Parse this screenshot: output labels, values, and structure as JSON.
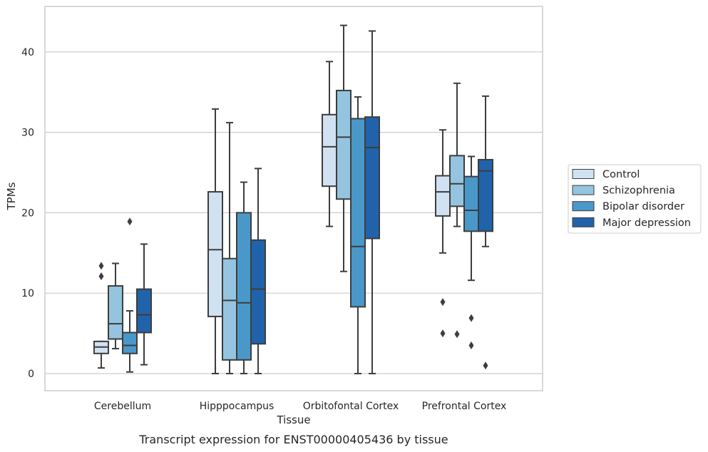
{
  "chart_data": {
    "type": "box",
    "title": "",
    "caption": "Transcript expression for ENST00000405436 by tissue",
    "xlabel": "Tissue",
    "ylabel": "TPMs",
    "ylim": [
      -2,
      45.5
    ],
    "yticks": [
      0,
      10,
      20,
      30,
      40
    ],
    "grid": "horizontal",
    "legend_position": "right",
    "categories": [
      "Cerebellum",
      "Hipppocampus",
      "Orbitofontal Cortex",
      "Prefrontal Cortex"
    ],
    "series": [
      {
        "name": "Control",
        "color": "#d0e1f2",
        "boxes": [
          {
            "min": 0.7,
            "q1": 2.5,
            "median": 3.3,
            "q3": 4.0,
            "max": 4.0,
            "outliers": [
              12.1,
              13.4
            ]
          },
          {
            "min": 0.0,
            "q1": 7.1,
            "median": 15.4,
            "q3": 22.6,
            "max": 32.9,
            "outliers": []
          },
          {
            "min": 18.3,
            "q1": 23.3,
            "median": 28.2,
            "q3": 32.2,
            "max": 38.8,
            "outliers": []
          },
          {
            "min": 15.0,
            "q1": 19.6,
            "median": 22.6,
            "q3": 24.6,
            "max": 30.3,
            "outliers": [
              5.0,
              8.9
            ]
          }
        ]
      },
      {
        "name": "Schizophrenia",
        "color": "#94c4df",
        "boxes": [
          {
            "min": 3.1,
            "q1": 4.3,
            "median": 6.2,
            "q3": 10.9,
            "max": 13.7,
            "outliers": []
          },
          {
            "min": 0.0,
            "q1": 1.7,
            "median": 9.1,
            "q3": 14.3,
            "max": 31.2,
            "outliers": []
          },
          {
            "min": 12.7,
            "q1": 21.7,
            "median": 29.4,
            "q3": 35.2,
            "max": 43.3,
            "outliers": []
          },
          {
            "min": 18.3,
            "q1": 20.8,
            "median": 23.6,
            "q3": 27.1,
            "max": 36.1,
            "outliers": [
              4.9
            ]
          }
        ]
      },
      {
        "name": "Bipolar disorder",
        "color": "#4a98c9",
        "boxes": [
          {
            "min": 0.2,
            "q1": 2.5,
            "median": 3.5,
            "q3": 5.1,
            "max": 7.8,
            "outliers": [
              18.9
            ]
          },
          {
            "min": 0.0,
            "q1": 1.7,
            "median": 8.8,
            "q3": 20.0,
            "max": 23.8,
            "outliers": []
          },
          {
            "min": 0.0,
            "q1": 8.3,
            "median": 15.8,
            "q3": 31.7,
            "max": 34.4,
            "outliers": []
          },
          {
            "min": 11.6,
            "q1": 17.7,
            "median": 20.3,
            "q3": 24.5,
            "max": 27.0,
            "outliers": [
              3.5,
              6.9
            ]
          }
        ]
      },
      {
        "name": "Major depression",
        "color": "#2163aa",
        "boxes": [
          {
            "min": 1.1,
            "q1": 5.1,
            "median": 7.3,
            "q3": 10.5,
            "max": 16.1,
            "outliers": []
          },
          {
            "min": 0.0,
            "q1": 3.7,
            "median": 10.5,
            "q3": 16.6,
            "max": 25.5,
            "outliers": []
          },
          {
            "min": 0.0,
            "q1": 16.8,
            "median": 28.1,
            "q3": 31.9,
            "max": 42.6,
            "outliers": []
          },
          {
            "min": 15.8,
            "q1": 17.7,
            "median": 25.2,
            "q3": 26.6,
            "max": 34.5,
            "outliers": [
              1.0
            ]
          }
        ]
      }
    ]
  }
}
